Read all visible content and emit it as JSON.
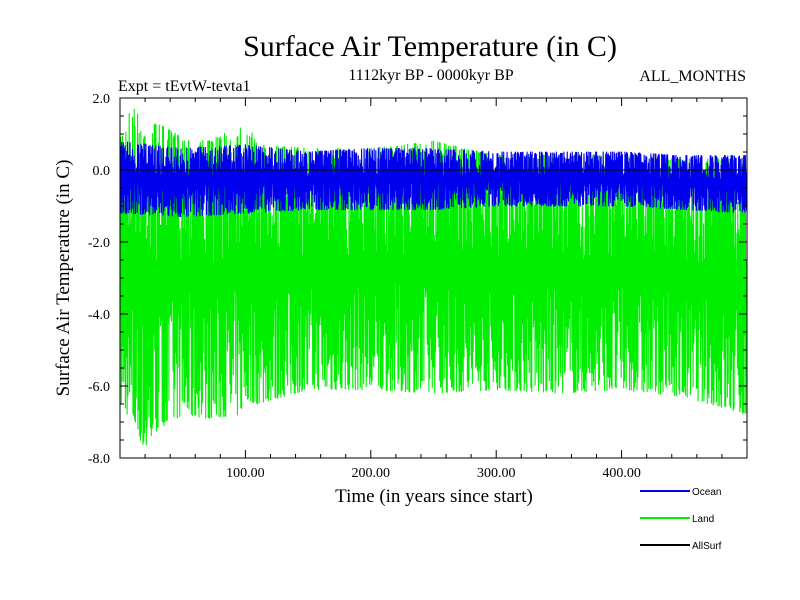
{
  "chart_data": {
    "type": "line",
    "title": "Surface Air Temperature (in C)",
    "subtitle_left": "Expt = tEvtW-tevta1",
    "subtitle_center": "1112kyr BP - 0000kyr BP",
    "subtitle_right": "ALL_MONTHS",
    "xlabel": "Time (in years since start)",
    "ylabel": "Surface Air Temperature (in C)",
    "xlim": [
      0,
      500
    ],
    "ylim": [
      -8,
      2
    ],
    "x_ticks": [
      100,
      200,
      300,
      400
    ],
    "x_tick_labels": [
      "100.00",
      "200.00",
      "300.00",
      "400.00"
    ],
    "y_ticks": [
      -8,
      -6,
      -4,
      -2,
      0,
      2
    ],
    "y_tick_labels": [
      "-8.0",
      "-6.0",
      "-4.0",
      "-2.0",
      "0.0",
      "2.0"
    ],
    "legend": [
      "Ocean",
      "Land",
      "AllSurf"
    ],
    "legend_position": "bottom-right",
    "series": [
      {
        "name": "Land",
        "color": "#00ee00",
        "description": "dense noisy monthly series",
        "envelope": {
          "x": [
            0,
            10,
            20,
            30,
            50,
            70,
            95,
            100,
            110,
            150,
            200,
            250,
            300,
            350,
            400,
            450,
            500
          ],
          "upper": [
            1.0,
            1.8,
            1.2,
            1.3,
            0.9,
            0.8,
            1.2,
            1.4,
            0.7,
            0.6,
            0.6,
            0.8,
            0.4,
            0.4,
            0.4,
            0.3,
            0.3
          ],
          "lower": [
            -6.5,
            -7.0,
            -7.8,
            -7.2,
            -6.8,
            -6.9,
            -6.8,
            -6.4,
            -6.5,
            -6.1,
            -6.1,
            -6.2,
            -6.1,
            -6.2,
            -6.1,
            -6.3,
            -6.8
          ]
        }
      },
      {
        "name": "Ocean",
        "color": "#0000ee",
        "description": "dense noisy monthly series",
        "envelope": {
          "x": [
            0,
            50,
            100,
            150,
            200,
            250,
            300,
            350,
            400,
            450,
            500
          ],
          "upper": [
            0.8,
            0.6,
            0.7,
            0.5,
            0.6,
            0.6,
            0.5,
            0.5,
            0.5,
            0.4,
            0.4
          ],
          "lower": [
            -1.2,
            -1.3,
            -1.2,
            -1.1,
            -1.1,
            -1.1,
            -1.0,
            -1.0,
            -1.0,
            -1.1,
            -1.2
          ]
        }
      },
      {
        "name": "AllSurf",
        "color": "#000000",
        "values_constant": 0.0
      }
    ]
  }
}
